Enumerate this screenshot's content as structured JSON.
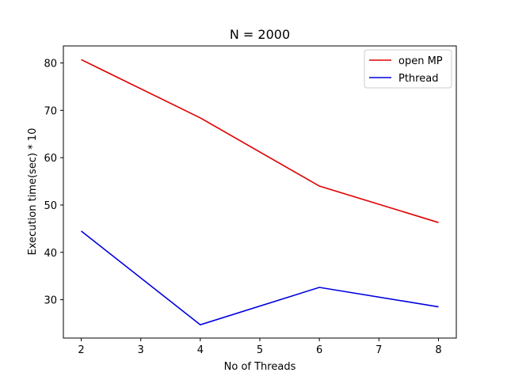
{
  "chart_data": {
    "type": "line",
    "title": "N = 2000",
    "xlabel": "No of Threads",
    "ylabel": "Execution time(sec) * 10",
    "x": [
      2,
      4,
      6,
      8
    ],
    "xlim": [
      1.7,
      8.3
    ],
    "ylim": [
      21.9,
      83.6
    ],
    "xticks": [
      2,
      3,
      4,
      5,
      6,
      7,
      8
    ],
    "yticks": [
      30,
      40,
      50,
      60,
      70,
      80
    ],
    "grid": false,
    "legend_position": "top-right",
    "series": [
      {
        "name": "open MP",
        "color": "#e00000",
        "values": [
          80.7,
          68.4,
          54.0,
          46.3
        ]
      },
      {
        "name": "Pthread",
        "color": "#0000e0",
        "values": [
          44.5,
          24.7,
          32.6,
          28.5
        ]
      }
    ]
  }
}
